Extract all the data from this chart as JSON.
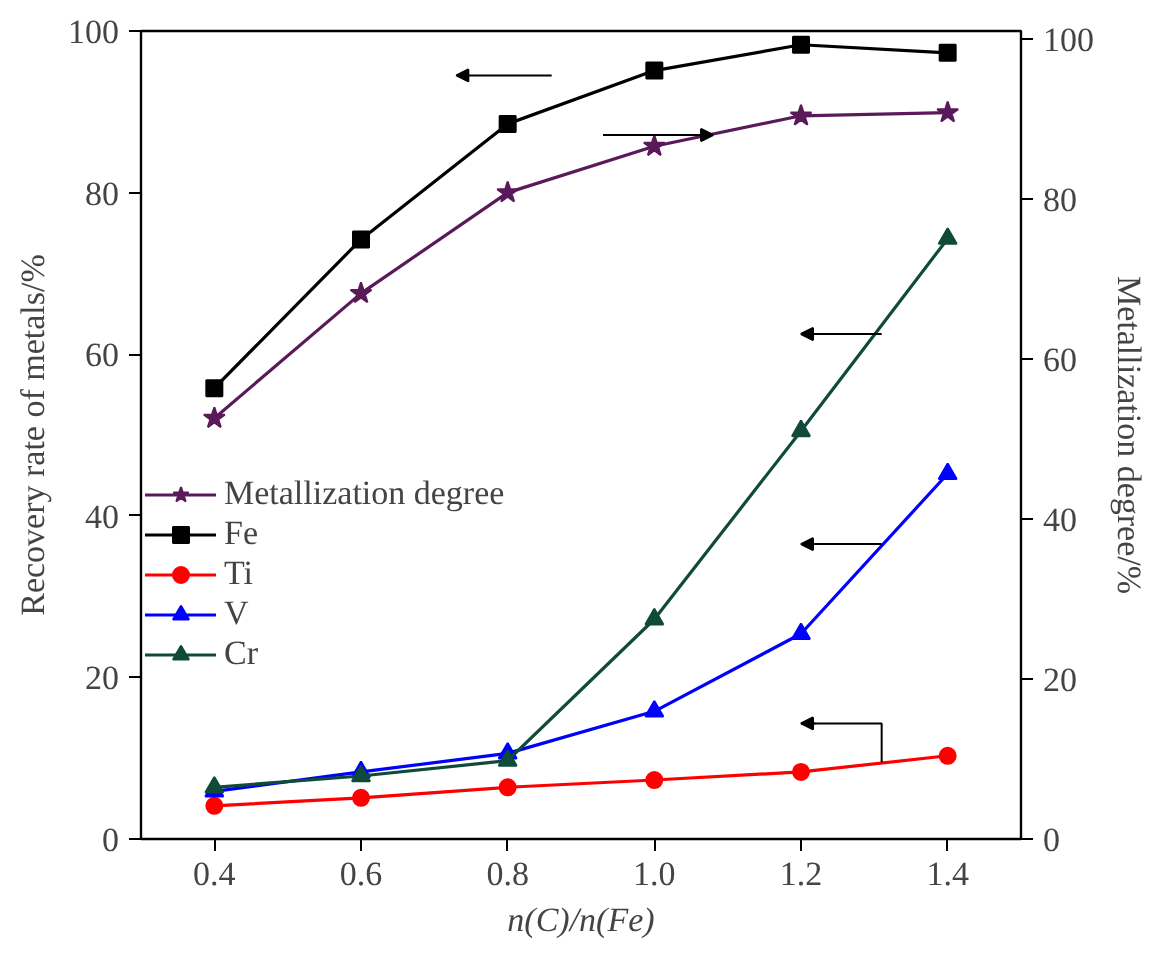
{
  "chart_data": {
    "type": "line",
    "xlabel": "n(C)/n(Fe)",
    "ylabel": "Recovery rate of metals/%",
    "y2label": "Metallization degree/%",
    "x": [
      0.4,
      0.6,
      0.8,
      1.0,
      1.2,
      1.4
    ],
    "xlim": [
      0.3,
      1.5
    ],
    "xticks": [
      {
        "value": 0.4,
        "label": "0.4"
      },
      {
        "value": 0.6,
        "label": "0.6"
      },
      {
        "value": 0.8,
        "label": "0.8"
      },
      {
        "value": 1.0,
        "label": "1.0"
      },
      {
        "value": 1.2,
        "label": "1.2"
      },
      {
        "value": 1.4,
        "label": "1.4"
      }
    ],
    "ylim": [
      0,
      100
    ],
    "yticks": [
      0,
      20,
      40,
      60,
      80,
      100
    ],
    "y2lim": [
      0,
      101
    ],
    "y2ticks": [
      0,
      20,
      40,
      60,
      80,
      100
    ],
    "grid": false,
    "legend": "left",
    "series": [
      {
        "name": "Metallization degree",
        "color": "#5a1a5a",
        "marker": "star",
        "axis": "y2",
        "values": [
          52.6,
          68.2,
          80.8,
          86.6,
          90.4,
          90.8
        ]
      },
      {
        "name": "Fe",
        "color": "#000000",
        "marker": "square",
        "values": [
          55.8,
          74.2,
          88.5,
          95.1,
          98.3,
          97.3
        ]
      },
      {
        "name": "Ti",
        "color": "#ff0000",
        "marker": "circle",
        "values": [
          4.1,
          5.1,
          6.4,
          7.3,
          8.3,
          10.3
        ]
      },
      {
        "name": "V",
        "color": "#0000ff",
        "marker": "triangle",
        "values": [
          5.9,
          8.3,
          10.6,
          15.8,
          25.4,
          45.2
        ]
      },
      {
        "name": "Cr",
        "color": "#0f4a3a",
        "marker": "triangle",
        "values": [
          6.4,
          7.8,
          9.7,
          27.2,
          50.5,
          74.3
        ]
      }
    ]
  }
}
